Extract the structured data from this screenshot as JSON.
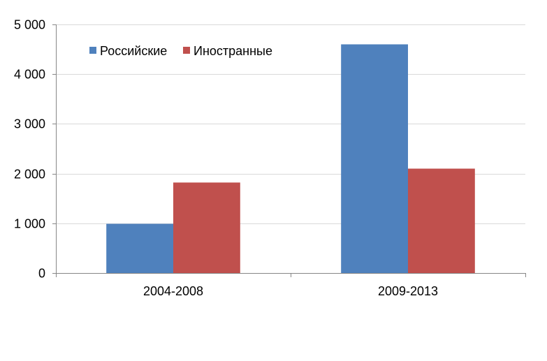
{
  "chart_data": {
    "type": "bar",
    "title": "",
    "xlabel": "",
    "ylabel": "",
    "categories": [
      "2004-2008",
      "2009-2013"
    ],
    "series": [
      {
        "name": "Российские",
        "color": "#4F81BD",
        "values": [
          990,
          4600
        ]
      },
      {
        "name": "Иностранные",
        "color": "#C0504D",
        "values": [
          1820,
          2100
        ]
      }
    ],
    "ylim": [
      0,
      5000
    ],
    "yticks": [
      0,
      1000,
      2000,
      3000,
      4000,
      5000
    ],
    "ytick_labels": [
      "0",
      "1 000",
      "2 000",
      "3 000",
      "4 000",
      "5 000"
    ],
    "grid": true,
    "legend_position": "top-left"
  }
}
